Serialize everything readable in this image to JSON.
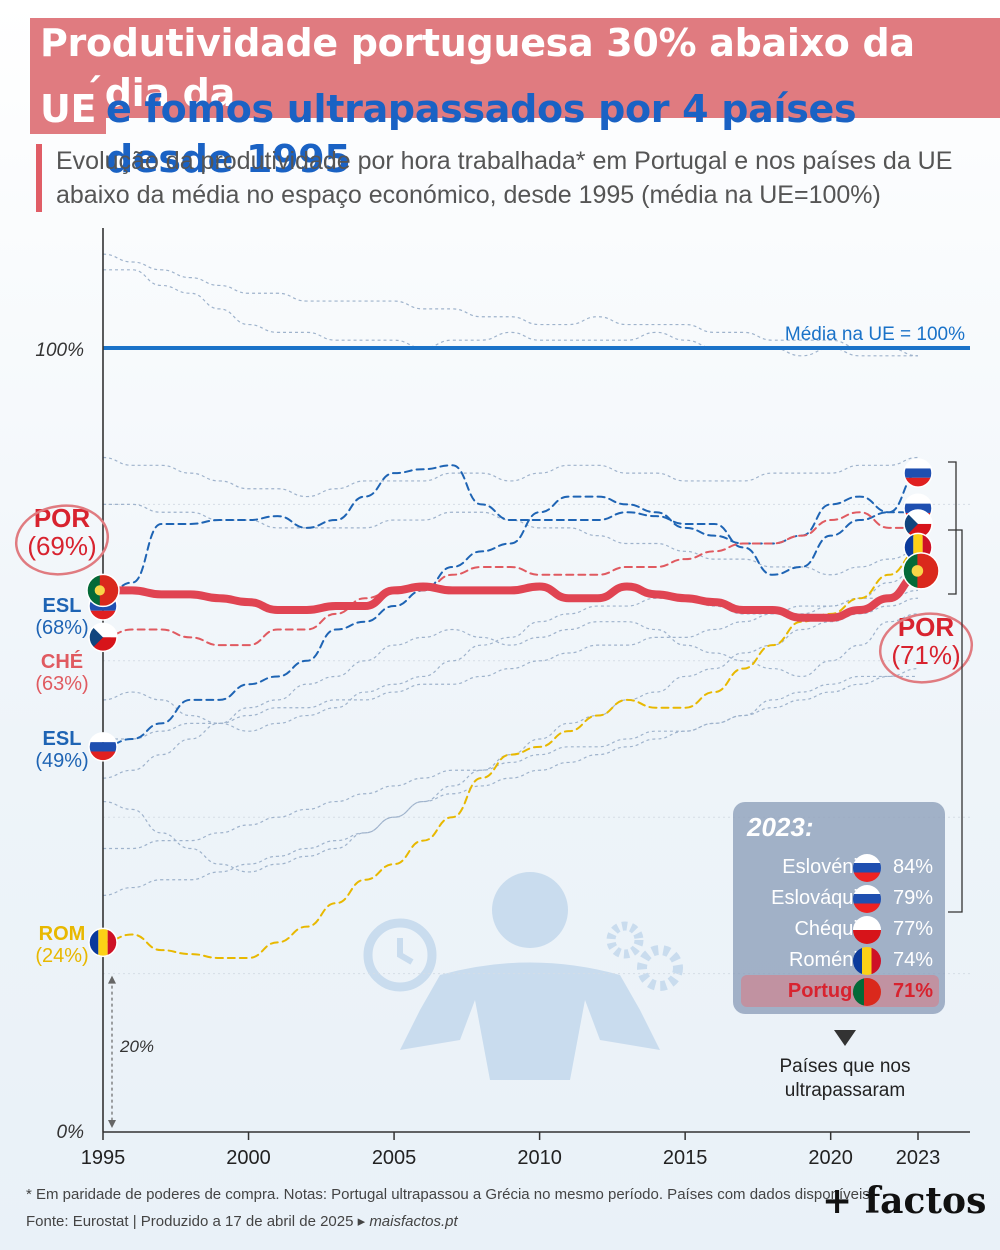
{
  "title": {
    "line1": "Produtividade portuguesa 30% abaixo da média da",
    "line2_highlight": "UE",
    "line2_rest": "e fomos ultrapassados por 4 países desde 1995"
  },
  "subtitle": "Evolução da produtividade por hora trabalhada* em Portugal e nos países da UE abaixo da média no espaço económico, desde 1995 (média na UE=100%)",
  "colors": {
    "portugal": "#e04452",
    "eslovenia": "#1e64b4",
    "eslovaquia": "#1e64b4",
    "chequia": "#e05a60",
    "romenia": "#e8b800",
    "eu_avg": "#1a72c8",
    "others": "#9fb3cc"
  },
  "chart_data": {
    "type": "line",
    "x": [
      1995,
      1996,
      1997,
      1998,
      1999,
      2000,
      2001,
      2002,
      2003,
      2004,
      2005,
      2006,
      2007,
      2008,
      2009,
      2010,
      2011,
      2012,
      2013,
      2014,
      2015,
      2016,
      2017,
      2018,
      2019,
      2020,
      2021,
      2022,
      2023
    ],
    "xticks": [
      "1995",
      "2000",
      "2005",
      "2010",
      "2015",
      "2020",
      "2023"
    ],
    "yticks": [
      "0%",
      "100%"
    ],
    "ylim": [
      0,
      112
    ],
    "reference_line": {
      "value": 100,
      "label": "Média na UE = 100%"
    },
    "scale_annotation": "20%",
    "series": [
      {
        "name": "Portugal",
        "key": "portugal",
        "values": [
          69,
          69,
          68.5,
          68.5,
          68,
          67.5,
          66.5,
          66.5,
          67,
          67,
          69,
          69.5,
          69,
          69,
          69,
          69.5,
          68,
          68,
          69.5,
          68.5,
          68,
          67.5,
          66.5,
          66.5,
          65.5,
          65.5,
          66.5,
          68,
          71
        ]
      },
      {
        "name": "Eslovénia",
        "key": "eslovenia",
        "values": [
          68,
          70,
          77.5,
          77.5,
          78,
          78,
          78.5,
          77,
          78,
          81,
          84,
          84.5,
          85,
          80,
          78,
          78,
          78,
          78,
          79,
          78.5,
          77.5,
          77.5,
          74.5,
          71,
          72,
          76,
          78,
          79,
          84
        ]
      },
      {
        "name": "Eslováquia",
        "key": "eslovaquia",
        "values": [
          49,
          50,
          52,
          55,
          55,
          57,
          58,
          60,
          64,
          65,
          67,
          69,
          72,
          74,
          75,
          79,
          81,
          81,
          80,
          79,
          77,
          76,
          75,
          75,
          76,
          80,
          81,
          79,
          79
        ]
      },
      {
        "name": "Chéquia",
        "key": "chequia",
        "values": [
          63,
          64,
          64,
          63,
          62,
          62,
          64,
          64,
          66,
          68,
          69,
          69,
          71,
          72,
          72,
          71,
          71,
          71,
          72,
          72,
          73,
          74,
          75,
          75,
          76,
          78,
          79,
          77,
          77
        ]
      },
      {
        "name": "Roménia",
        "key": "romenia",
        "values": [
          24,
          25,
          23,
          22.5,
          22,
          22,
          24,
          26,
          29,
          32,
          34,
          37,
          40,
          45,
          48,
          49,
          51,
          53,
          55,
          54,
          54,
          56,
          59,
          62,
          65,
          66,
          68,
          71,
          74
        ]
      }
    ],
    "start_labels": [
      {
        "name": "POR",
        "value": "(69%)"
      },
      {
        "name": "ESL",
        "value": "(68%)"
      },
      {
        "name": "CHÉ",
        "value": "(63%)"
      },
      {
        "name": "ESL",
        "value": "(49%)"
      },
      {
        "name": "ROM",
        "value": "(24%)"
      }
    ],
    "end_label": {
      "name": "POR",
      "value": "(71%)"
    }
  },
  "legend": {
    "title": "2023:",
    "items": [
      {
        "name": "Eslovénia",
        "value": "84%",
        "flag": "slovenia"
      },
      {
        "name": "Eslováquia",
        "value": "79%",
        "flag": "slovakia"
      },
      {
        "name": "Chéquia",
        "value": "77%",
        "flag": "czechia"
      },
      {
        "name": "Roménia",
        "value": "74%",
        "flag": "romania"
      },
      {
        "name": "Portugal",
        "value": "71%",
        "flag": "portugal"
      }
    ],
    "note": "Países que nos ultrapassaram"
  },
  "footer": {
    "notes": "* Em paridade de poderes de compra. Notas: Portugal ultrapassou a Grécia no mesmo período. Países com dados disponíveis.",
    "source": "Fonte: Eurostat | Produzido a 17 de abril de 2025 ▸",
    "site": "maisfactos.pt",
    "brand": "+ factos"
  }
}
